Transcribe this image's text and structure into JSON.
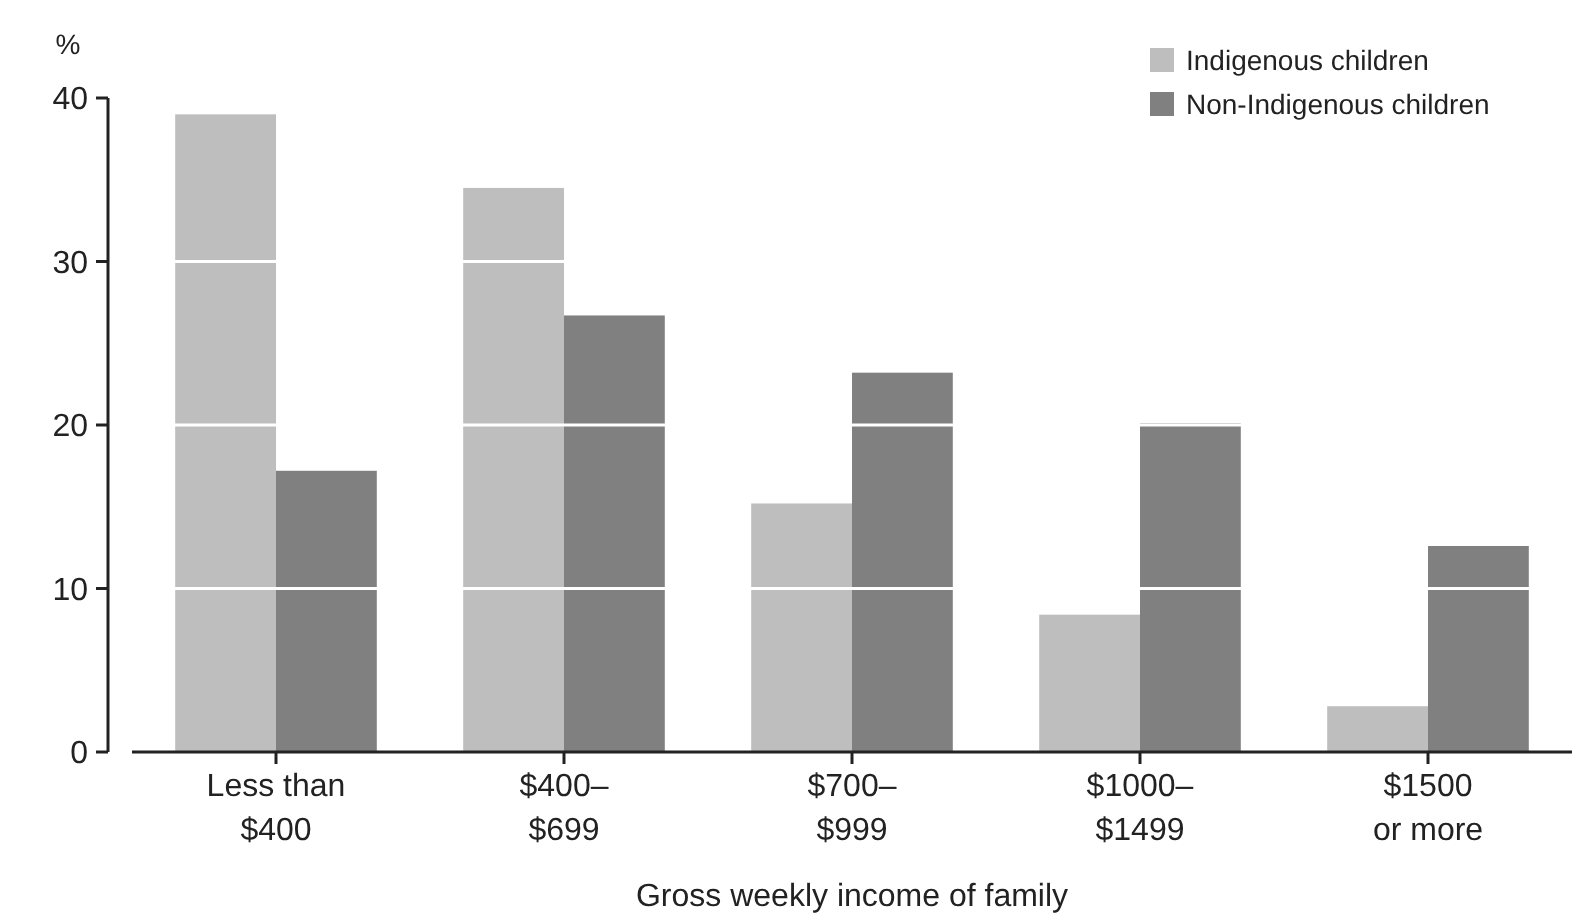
{
  "chart_data": {
    "type": "bar",
    "ylabel": "%",
    "xlabel": "Gross weekly income of family",
    "categories": [
      "Less than\n$400",
      "$400–\n$699",
      "$700–\n$999",
      "$1000–\n$1499",
      "$1500\nor more"
    ],
    "series": [
      {
        "name": "Indigenous children",
        "color": "#bebebe",
        "values": [
          39.0,
          34.5,
          15.2,
          8.4,
          2.8
        ]
      },
      {
        "name": "Non-Indigenous children",
        "color": "#808080",
        "values": [
          17.2,
          26.7,
          23.2,
          20.1,
          12.6
        ]
      }
    ],
    "ylim": [
      0,
      40
    ],
    "yticks": [
      0,
      10,
      20,
      30,
      40
    ],
    "grid": "y",
    "legend": "top right"
  }
}
